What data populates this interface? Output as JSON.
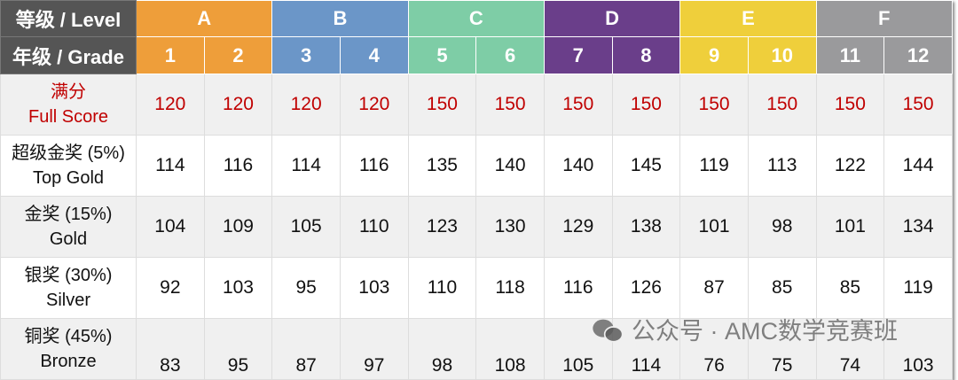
{
  "header": {
    "level_label": "等级 / Level",
    "grade_label": "年级 / Grade",
    "levels": [
      {
        "name": "A",
        "color": "#EE9E3A"
      },
      {
        "name": "B",
        "color": "#6B96C8"
      },
      {
        "name": "C",
        "color": "#7ECDA6"
      },
      {
        "name": "D",
        "color": "#6A3E8A"
      },
      {
        "name": "E",
        "color": "#EFCF3B"
      },
      {
        "name": "F",
        "color": "#9A9A9C"
      }
    ],
    "grades": [
      "1",
      "2",
      "3",
      "4",
      "5",
      "6",
      "7",
      "8",
      "9",
      "10",
      "11",
      "12"
    ]
  },
  "rows": [
    {
      "label_cn": "满分",
      "label_en": "Full Score",
      "values": [
        "120",
        "120",
        "120",
        "120",
        "150",
        "150",
        "150",
        "150",
        "150",
        "150",
        "150",
        "150"
      ]
    },
    {
      "label_cn": "超级金奖 (5%)",
      "label_en": "Top Gold",
      "values": [
        "114",
        "116",
        "114",
        "116",
        "135",
        "140",
        "140",
        "145",
        "119",
        "113",
        "122",
        "144"
      ]
    },
    {
      "label_cn": "金奖 (15%)",
      "label_en": "Gold",
      "values": [
        "104",
        "109",
        "105",
        "110",
        "123",
        "130",
        "129",
        "138",
        "101",
        "98",
        "101",
        "134"
      ]
    },
    {
      "label_cn": "银奖 (30%)",
      "label_en": "Silver",
      "values": [
        "92",
        "103",
        "95",
        "103",
        "110",
        "118",
        "116",
        "126",
        "87",
        "85",
        "85",
        "119"
      ]
    },
    {
      "label_cn": "铜奖 (45%)",
      "label_en": "Bronze",
      "values": [
        "83",
        "95",
        "87",
        "97",
        "98",
        "108",
        "105",
        "114",
        "76",
        "75",
        "74",
        "103"
      ]
    }
  ],
  "watermark": "公众号 · AMC数学竞赛班"
}
